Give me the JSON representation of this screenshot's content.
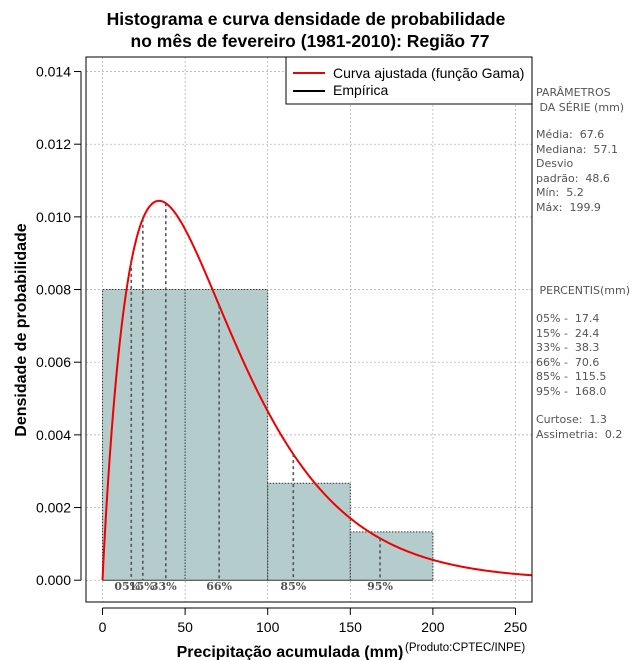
{
  "chart_data": {
    "type": "histogram",
    "title_line1": "Histograma e curva densidade de probabilidade",
    "title_line2": "no mês de fevereiro (1981-2010): Região 77",
    "xlabel": "Precipitação acumulada (mm)",
    "ylabel": "Densidade de probabilidade",
    "credit": "(Produto:CPTEC/INPE)",
    "xlim": [
      -10,
      260
    ],
    "ylim": [
      -0.0006,
      0.0144
    ],
    "x_ticks": [
      0,
      50,
      100,
      150,
      200,
      250
    ],
    "y_ticks": [
      0.0,
      0.002,
      0.004,
      0.006,
      0.008,
      0.01,
      0.012,
      0.014
    ],
    "y_tick_labels": [
      "0.000",
      "0.002",
      "0.004",
      "0.006",
      "0.008",
      "0.010",
      "0.012",
      "0.014"
    ],
    "grid": true,
    "legend": {
      "position": "top-right",
      "fitted_label": "Curva ajustada (função Gama)",
      "empirical_label": "Empírica"
    },
    "bins": [
      {
        "start": 0,
        "end": 100,
        "density": 0.008
      },
      {
        "start": 100,
        "end": 150,
        "density": 0.00267
      },
      {
        "start": 150,
        "end": 200,
        "density": 0.00133
      }
    ],
    "gamma": {
      "shape": 1.95,
      "scale": 36.0
    },
    "percentiles": [
      {
        "label": "05%",
        "value": 17.4
      },
      {
        "label": "15%",
        "value": 24.4
      },
      {
        "label": "33%",
        "value": 38.3
      },
      {
        "label": "66%",
        "value": 70.6
      },
      {
        "label": "85%",
        "value": 115.5
      },
      {
        "label": "95%",
        "value": 168.0
      }
    ],
    "colors": {
      "bar_fill": "#b4cccc",
      "curve": "#ee0000",
      "percentile_line": "#555555",
      "grid": "#aaaaaa"
    }
  },
  "side_panel": {
    "params_title": "PARÂMETROS\n DA SÉRIE (mm)",
    "params_body": "Média:  67.6\nMediana:  57.1\nDesvio\npadrão:  48.6\nMín:  5.2\nMáx:  199.9",
    "percentis_title": " PERCENTIS(mm)",
    "percentis_body": "05% -  17.4\n15% -  24.4\n33% -  38.3\n66% -  70.6\n85% -  115.5\n95% -  168.0",
    "shape_body": "Curtose:  1.3\nAssimetria:  0.2"
  }
}
